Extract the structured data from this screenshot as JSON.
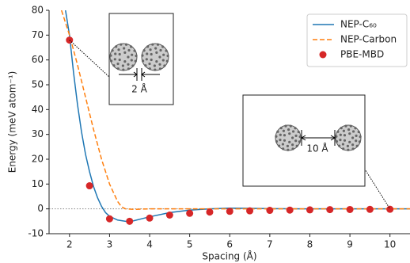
{
  "chart_data": {
    "type": "line",
    "x_label": "Spacing (Å)",
    "y_label": "Energy (meV atom⁻¹)",
    "xlim": [
      1.49,
      10.5
    ],
    "ylim": [
      -10,
      80
    ],
    "xticks": [
      2,
      3,
      4,
      5,
      6,
      7,
      8,
      9,
      10
    ],
    "yticks": [
      -10,
      0,
      10,
      20,
      30,
      40,
      50,
      60,
      70,
      80
    ],
    "zero_line": true,
    "legend": "upper right",
    "series": [
      {
        "name": "NEP-C₆₀",
        "color": "#1f77b4",
        "style": "solid",
        "x": [
          1.9,
          2.0,
          2.1,
          2.2,
          2.3,
          2.4,
          2.5,
          2.6,
          2.7,
          2.8,
          2.9,
          3.0,
          3.2,
          3.4,
          3.6,
          3.8,
          4.0,
          4.5,
          5.0,
          5.5,
          6.0,
          6.5,
          7.0,
          8.0,
          9.0,
          10.5
        ],
        "values": [
          80,
          70,
          55,
          42,
          31,
          22,
          15,
          9,
          4.5,
          1,
          -1.5,
          -3,
          -4.5,
          -5,
          -4.8,
          -4,
          -3.2,
          -1.5,
          -0.5,
          0,
          0.3,
          0.2,
          0.1,
          0,
          0,
          0
        ]
      },
      {
        "name": "NEP-Carbon",
        "color": "#ff7f0e",
        "style": "dashed",
        "x": [
          1.8,
          2.0,
          2.2,
          2.4,
          2.6,
          2.8,
          3.0,
          3.2,
          3.3,
          3.4,
          3.6,
          4.0,
          5.0,
          6.0,
          8.0,
          10.5
        ],
        "values": [
          80,
          70,
          58,
          45,
          32,
          20,
          10,
          3,
          0.8,
          0,
          -0.2,
          0,
          0,
          0,
          0,
          0
        ]
      },
      {
        "name": "PBE-MBD",
        "color": "#d62728",
        "style": "marker",
        "x": [
          2,
          2.5,
          3,
          3.5,
          4,
          4.5,
          5,
          5.5,
          6,
          6.5,
          7,
          7.5,
          8,
          8.5,
          9,
          9.5,
          10
        ],
        "values": [
          68,
          9.3,
          -4,
          -5,
          -3.7,
          -2.5,
          -1.8,
          -1.3,
          -1,
          -0.8,
          -0.6,
          -0.5,
          -0.4,
          -0.3,
          -0.25,
          -0.2,
          -0.15
        ]
      }
    ],
    "annotations": [
      "2 Å",
      "10 Å"
    ]
  }
}
